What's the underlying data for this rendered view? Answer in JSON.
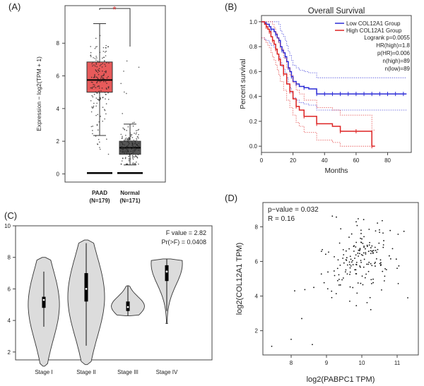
{
  "chart_data": [
    {
      "panel": "(A)",
      "type": "box",
      "ylabel": "Expression − log2(TPM + 1)",
      "ylim": [
        0,
        10
      ],
      "yticks": [
        0,
        2,
        4,
        6,
        8
      ],
      "significance_marker": "*",
      "groups": [
        {
          "name": "PAAD",
          "n_label": "(N=179)",
          "color": "#e85a5a",
          "q1": 5.0,
          "median": 5.75,
          "q3": 6.85,
          "whisker_low": 2.35,
          "whisker_high": 9.2,
          "baseline": 0.05
        },
        {
          "name": "Normal",
          "n_label": "(N=171)",
          "color": "#555555",
          "q1": 1.2,
          "median": 1.6,
          "q3": 2.0,
          "whisker_low": 0.55,
          "whisker_high": 3.05,
          "baseline": 0.05
        }
      ]
    },
    {
      "panel": "(B)",
      "type": "line",
      "title": "Overall Survival",
      "xlabel": "Months",
      "ylabel": "Percent survival",
      "xlim": [
        0,
        95
      ],
      "ylim": [
        0,
        1.05
      ],
      "xticks": [
        0,
        20,
        40,
        60,
        80
      ],
      "yticks": [
        0.0,
        0.2,
        0.4,
        0.6,
        0.8,
        1.0
      ],
      "series": [
        {
          "name": "Low COL12A1 Group",
          "color": "#2b2bd6",
          "x": [
            0,
            2,
            3,
            5,
            6,
            8,
            9,
            10,
            11,
            12,
            13,
            14,
            15,
            16,
            17,
            18,
            19,
            20,
            22,
            24,
            27,
            30,
            35,
            92
          ],
          "y": [
            1.0,
            0.99,
            0.98,
            0.96,
            0.94,
            0.92,
            0.9,
            0.87,
            0.85,
            0.8,
            0.77,
            0.75,
            0.72,
            0.68,
            0.63,
            0.6,
            0.56,
            0.52,
            0.5,
            0.48,
            0.47,
            0.46,
            0.42,
            0.42
          ]
        },
        {
          "name": "High COL12A1 Group",
          "color": "#dd2222",
          "x": [
            0,
            2,
            3,
            4,
            5,
            6,
            7,
            8,
            9,
            10,
            11,
            12,
            14,
            16,
            18,
            20,
            22,
            24,
            27,
            30,
            35,
            45,
            50,
            55,
            60,
            65,
            70,
            72
          ],
          "y": [
            1.0,
            0.98,
            0.96,
            0.94,
            0.92,
            0.88,
            0.85,
            0.82,
            0.78,
            0.74,
            0.7,
            0.65,
            0.58,
            0.5,
            0.44,
            0.38,
            0.32,
            0.29,
            0.24,
            0.24,
            0.18,
            0.16,
            0.12,
            0.12,
            0.12,
            0.12,
            0.0,
            0.0
          ]
        }
      ],
      "stats": [
        "Logrank p=0.0055",
        "HR(high)=1.8",
        "p(HR)=0.006",
        "n(high)=89",
        "n(low)=89"
      ]
    },
    {
      "panel": "(C)",
      "type": "violin",
      "ylim": [
        1.5,
        10
      ],
      "yticks": [
        2,
        4,
        6,
        8,
        10
      ],
      "annotation": [
        "F value = 2.82",
        "Pr(>F) = 0.0408"
      ],
      "groups": [
        {
          "name": "Stage I",
          "min": 1.1,
          "max": 8.0,
          "q1": 4.8,
          "median": 5.3,
          "q3": 5.5,
          "whisker_low": 3.6,
          "whisker_high": 7.1,
          "peak": 5.0,
          "width": 0.85
        },
        {
          "name": "Stage II",
          "min": 1.2,
          "max": 9.1,
          "q1": 5.2,
          "median": 6.0,
          "q3": 7.0,
          "whisker_low": 2.4,
          "whisker_high": 8.9,
          "peak": 5.5,
          "width": 1.0
        },
        {
          "name": "Stage III",
          "min": 4.3,
          "max": 6.2,
          "q1": 4.6,
          "median": 4.85,
          "q3": 5.2,
          "whisker_low": 4.3,
          "whisker_high": 6.2,
          "peak": 4.9,
          "width": 0.9
        },
        {
          "name": "Stage IV",
          "min": 3.8,
          "max": 7.9,
          "q1": 6.5,
          "median": 7.1,
          "q3": 7.5,
          "whisker_low": 4.6,
          "whisker_high": 7.9,
          "peak": 7.6,
          "width": 0.85
        }
      ]
    },
    {
      "panel": "(D)",
      "type": "scatter",
      "xlabel": "log2(PABPC1 TPM)",
      "ylabel": "log2(COL12A1 TPM)",
      "xlim": [
        7.2,
        11.6
      ],
      "ylim": [
        0.6,
        9.4
      ],
      "xticks": [
        8,
        9,
        10,
        11
      ],
      "yticks": [
        2,
        4,
        6,
        8
      ],
      "annotation": [
        "p−value = 0.032",
        "R = 0.16"
      ],
      "point_count": 180
    }
  ]
}
